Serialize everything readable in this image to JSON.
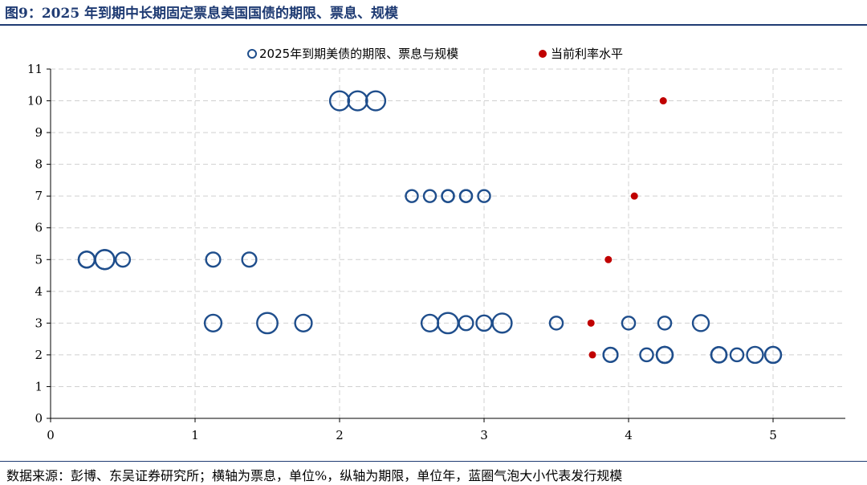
{
  "title": "图9：2025 年到期中长期固定票息美国国债的期限、票息、规模",
  "source": "数据来源：彭博、东吴证券研究所；横轴为票息，单位%，纵轴为期限，单位年，蓝圈气泡大小代表发行规模",
  "colors": {
    "bubble": "#1f4e8c",
    "current_rate": "#c00000",
    "grid": "#d0d0d0",
    "title": "#1f3b73"
  },
  "chart_data": {
    "type": "scatter",
    "xlim": [
      0,
      5.5
    ],
    "ylim": [
      0,
      11
    ],
    "x_ticks": [
      "0",
      "1",
      "2",
      "3",
      "4",
      "5"
    ],
    "y_ticks": [
      "0",
      "1",
      "2",
      "3",
      "4",
      "5",
      "6",
      "7",
      "8",
      "9",
      "10",
      "11"
    ],
    "grid": true,
    "legend_position": "top-center",
    "series": [
      {
        "name": "2025年到期美债的期限、票息与规模",
        "marker": "hollow-circle",
        "points": [
          {
            "x": 2.0,
            "y": 10,
            "size": 3
          },
          {
            "x": 2.125,
            "y": 10,
            "size": 3
          },
          {
            "x": 2.25,
            "y": 10,
            "size": 3
          },
          {
            "x": 2.5,
            "y": 7,
            "size": 1
          },
          {
            "x": 2.625,
            "y": 7,
            "size": 1
          },
          {
            "x": 2.75,
            "y": 7,
            "size": 1
          },
          {
            "x": 2.75,
            "y": 7,
            "size": 1
          },
          {
            "x": 2.875,
            "y": 7,
            "size": 1
          },
          {
            "x": 2.875,
            "y": 7,
            "size": 1
          },
          {
            "x": 3.0,
            "y": 7,
            "size": 1
          },
          {
            "x": 0.25,
            "y": 5,
            "size": 2
          },
          {
            "x": 0.25,
            "y": 5,
            "size": 2
          },
          {
            "x": 0.25,
            "y": 5,
            "size": 2
          },
          {
            "x": 0.375,
            "y": 5,
            "size": 3
          },
          {
            "x": 0.375,
            "y": 5,
            "size": 3
          },
          {
            "x": 0.5,
            "y": 5,
            "size": 1.5
          },
          {
            "x": 1.125,
            "y": 5,
            "size": 1.5
          },
          {
            "x": 1.375,
            "y": 5,
            "size": 1.5
          },
          {
            "x": 1.125,
            "y": 3,
            "size": 2.2
          },
          {
            "x": 1.5,
            "y": 3,
            "size": 3.5
          },
          {
            "x": 1.75,
            "y": 3,
            "size": 2.2
          },
          {
            "x": 2.625,
            "y": 3,
            "size": 2.2
          },
          {
            "x": 2.75,
            "y": 3,
            "size": 3.5
          },
          {
            "x": 2.875,
            "y": 3,
            "size": 1.5
          },
          {
            "x": 3.0,
            "y": 3,
            "size": 1.8
          },
          {
            "x": 3.125,
            "y": 3,
            "size": 3
          },
          {
            "x": 3.5,
            "y": 3,
            "size": 1.2
          },
          {
            "x": 4.0,
            "y": 3,
            "size": 1.2
          },
          {
            "x": 4.25,
            "y": 3,
            "size": 1.2
          },
          {
            "x": 4.5,
            "y": 3,
            "size": 2
          },
          {
            "x": 3.875,
            "y": 2,
            "size": 1.5
          },
          {
            "x": 3.875,
            "y": 2,
            "size": 1.5
          },
          {
            "x": 4.125,
            "y": 2,
            "size": 1.2
          },
          {
            "x": 4.25,
            "y": 2,
            "size": 2
          },
          {
            "x": 4.25,
            "y": 2,
            "size": 2
          },
          {
            "x": 4.25,
            "y": 2,
            "size": 2
          },
          {
            "x": 4.625,
            "y": 2,
            "size": 1.8
          },
          {
            "x": 4.625,
            "y": 2,
            "size": 1.8
          },
          {
            "x": 4.625,
            "y": 2,
            "size": 1.8
          },
          {
            "x": 4.75,
            "y": 2,
            "size": 1.2
          },
          {
            "x": 4.875,
            "y": 2,
            "size": 2
          },
          {
            "x": 5.0,
            "y": 2,
            "size": 2
          },
          {
            "x": 5.0,
            "y": 2,
            "size": 2
          }
        ]
      },
      {
        "name": "当前利率水平",
        "marker": "filled-dot",
        "points": [
          {
            "x": 4.24,
            "y": 10
          },
          {
            "x": 4.04,
            "y": 7
          },
          {
            "x": 3.86,
            "y": 5
          },
          {
            "x": 3.74,
            "y": 3
          },
          {
            "x": 3.75,
            "y": 2
          }
        ]
      }
    ]
  }
}
